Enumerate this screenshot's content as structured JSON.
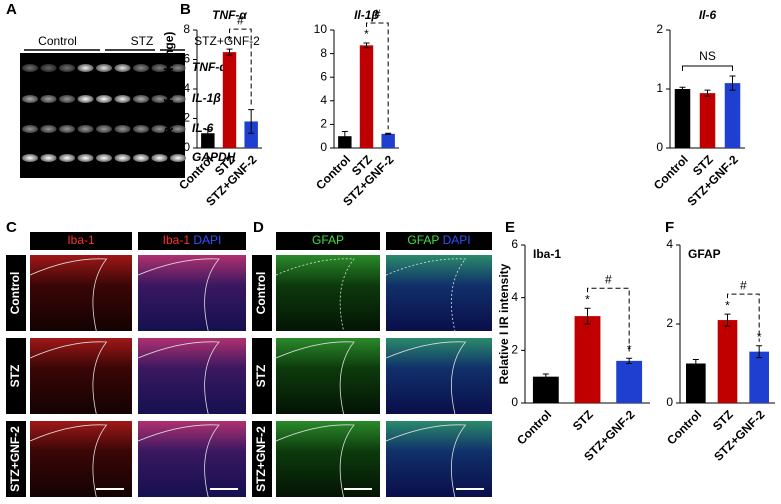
{
  "panel_labels": [
    "A",
    "B",
    "C",
    "D",
    "E",
    "F"
  ],
  "gel": {
    "groups": [
      "Control",
      "STZ",
      "STZ+GNF-2"
    ],
    "genes": [
      "TNF-α",
      "IL-1β",
      "IL-6",
      "GAPDH"
    ]
  },
  "micro_c": {
    "headers": [
      "Iba-1"
    ],
    "merge": [
      "Iba-1",
      "DAPI"
    ],
    "rows": [
      "Control",
      "STZ",
      "STZ+GNF-2"
    ]
  },
  "micro_d": {
    "headers": [
      "GFAP"
    ],
    "merge": [
      "GFAP",
      "DAPI"
    ],
    "rows": [
      "Control",
      "STZ",
      "STZ+GNF-2"
    ]
  },
  "chart_data": [
    {
      "type": "bar",
      "title": "TNF-α",
      "ylabel": "mRNA (fold change)",
      "categories": [
        "Control",
        "STZ",
        "STZ+GNF-2"
      ],
      "values": [
        1.0,
        6.5,
        1.8
      ],
      "errors": [
        0.25,
        0.2,
        0.8
      ],
      "colors": [
        "#000000",
        "#c00000",
        "#1f3fd0"
      ],
      "ylim": [
        0,
        8
      ],
      "yticks": [
        0,
        2,
        4,
        6,
        8
      ],
      "significance": [
        null,
        "*",
        null
      ],
      "bracket_label": "#",
      "bracket_dashed": true
    },
    {
      "type": "bar",
      "title": "Il-1β",
      "categories": [
        "Control",
        "STZ",
        "STZ+GNF-2"
      ],
      "values": [
        1.0,
        8.7,
        1.2
      ],
      "errors": [
        0.4,
        0.2,
        0.05
      ],
      "colors": [
        "#000000",
        "#c00000",
        "#1f3fd0"
      ],
      "ylim": [
        0,
        10
      ],
      "yticks": [
        0,
        2,
        4,
        6,
        8,
        10
      ],
      "significance": [
        null,
        "*",
        null
      ],
      "bracket_label": "#",
      "bracket_dashed": true
    },
    {
      "type": "bar",
      "title": "Il-6",
      "categories": [
        "Control",
        "STZ",
        "STZ+GNF-2"
      ],
      "values": [
        1.0,
        0.93,
        1.1
      ],
      "errors": [
        0.03,
        0.05,
        0.12
      ],
      "colors": [
        "#000000",
        "#c00000",
        "#1f3fd0"
      ],
      "ylim": [
        0,
        2
      ],
      "yticks": [
        0,
        1,
        2
      ],
      "significance": [
        null,
        null,
        null
      ],
      "bracket_label": "NS",
      "bracket_dashed": false
    },
    {
      "type": "bar",
      "title": "Iba-1",
      "ylabel": "Relative I IR intensity",
      "categories": [
        "Control",
        "STZ",
        "STZ+GNF-2"
      ],
      "values": [
        1.0,
        3.3,
        1.6
      ],
      "errors": [
        0.1,
        0.3,
        0.1
      ],
      "colors": [
        "#000000",
        "#c00000",
        "#1f3fd0"
      ],
      "ylim": [
        0,
        6
      ],
      "yticks": [
        0,
        2,
        4,
        6
      ],
      "significance": [
        null,
        "*",
        "*"
      ],
      "bracket_label": "#",
      "bracket_dashed": true
    },
    {
      "type": "bar",
      "title": "GFAP",
      "categories": [
        "Control",
        "STZ",
        "STZ+GNF-2"
      ],
      "values": [
        1.0,
        2.1,
        1.3
      ],
      "errors": [
        0.1,
        0.15,
        0.15
      ],
      "colors": [
        "#000000",
        "#c00000",
        "#1f3fd0"
      ],
      "ylim": [
        0,
        4
      ],
      "yticks": [
        0,
        2,
        4
      ],
      "significance": [
        null,
        "*",
        "*"
      ],
      "bracket_label": "#",
      "bracket_dashed": true
    }
  ]
}
